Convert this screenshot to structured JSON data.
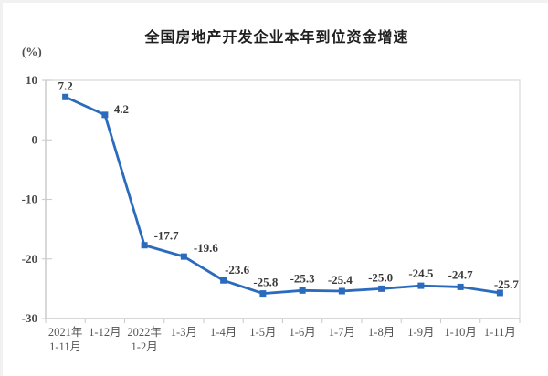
{
  "page": {
    "background": "#ffffff"
  },
  "chart_data": {
    "type": "line",
    "title": "全国房地产开发企业本年到位资金增速",
    "ylabel": "(%)",
    "categories": [
      "2021年\n1-11月",
      "1-12月",
      "2022年\n1-2月",
      "1-3月",
      "1-4月",
      "1-5月",
      "1-6月",
      "1-7月",
      "1-8月",
      "1-9月",
      "1-10月",
      "1-11月"
    ],
    "values": [
      7.2,
      4.2,
      -17.7,
      -19.6,
      -23.6,
      -25.8,
      -25.3,
      -25.4,
      -25.0,
      -24.5,
      -24.7,
      -25.7
    ],
    "point_labels": [
      "7.2",
      "4.2",
      "-17.7",
      "-19.6",
      "-23.6",
      "-25.8",
      "-25.3",
      "-25.4",
      "-25.0",
      "-24.5",
      "-24.7",
      "-25.7"
    ],
    "yticks": [
      10,
      0,
      -10,
      -20,
      -30
    ],
    "ytick_labels": [
      "10",
      "0",
      "-10",
      "-20",
      "-30"
    ],
    "ylim": [
      -30,
      10
    ],
    "grid": false,
    "legend": false,
    "colors": {
      "line": "#2a6bbd",
      "marker": "#2a6bbd",
      "point_label": "#3a3a3a",
      "axis_line": "#c4c4c4",
      "plot_border": "#d8d8d8",
      "tick_mark": "#cccccc",
      "ytick_text": "#4a4a4a",
      "xtick_text": "#555555"
    }
  }
}
